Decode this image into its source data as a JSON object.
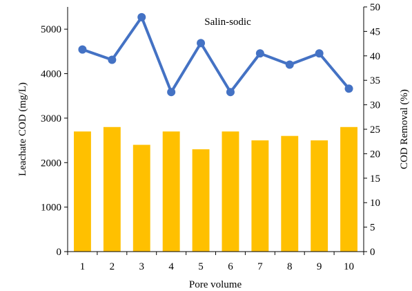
{
  "chart_data": {
    "type": "bar+line",
    "title": "Salin-sodic",
    "xlabel": "Pore volume",
    "ylabel_left": "Leachate COD (mg/L)",
    "ylabel_right": "COD Removal (%)",
    "categories": [
      "1",
      "2",
      "3",
      "4",
      "5",
      "6",
      "7",
      "8",
      "9",
      "10"
    ],
    "ylim_left": [
      0,
      5500
    ],
    "yticks_left": [
      "0",
      "1000",
      "2000",
      "3000",
      "4000",
      "5000"
    ],
    "ylim_right": [
      0,
      50
    ],
    "yticks_right": [
      "0",
      "5",
      "10",
      "15",
      "20",
      "25",
      "30",
      "35",
      "40",
      "45",
      "50"
    ],
    "grid": false,
    "series": [
      {
        "kind": "bar",
        "axis": "left",
        "color": "#FFC000",
        "values": [
          2700,
          2800,
          2400,
          2700,
          2300,
          2700,
          2500,
          2600,
          2500,
          2800
        ]
      },
      {
        "kind": "line",
        "axis": "right",
        "color": "#4472C4",
        "marker": "circle",
        "values": [
          41.3,
          39.2,
          47.9,
          32.6,
          42.6,
          32.6,
          40.5,
          38.2,
          40.5,
          33.3
        ]
      }
    ]
  }
}
